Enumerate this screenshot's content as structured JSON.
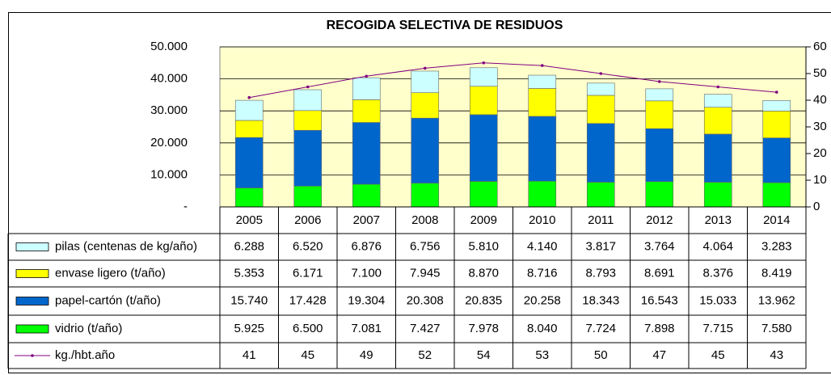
{
  "chart_data": {
    "type": "bar",
    "stacked": true,
    "title": "RECOGIDA SELECTIVA DE RESIDUOS",
    "categories": [
      "2005",
      "2006",
      "2007",
      "2008",
      "2009",
      "2010",
      "2011",
      "2012",
      "2013",
      "2014"
    ],
    "series": [
      {
        "name": "pilas (centenas de kg/año)",
        "color": "#ccffff",
        "values": [
          6288,
          6520,
          6876,
          6756,
          5810,
          4140,
          3817,
          3764,
          4064,
          3283
        ],
        "value_labels": [
          "6.288",
          "6.520",
          "6.876",
          "6.756",
          "5.810",
          "4.140",
          "3.817",
          "3.764",
          "4.064",
          "3.283"
        ]
      },
      {
        "name": "envase ligero (t/año)",
        "color": "#ffff00",
        "values": [
          5353,
          6171,
          7100,
          7945,
          8870,
          8716,
          8793,
          8691,
          8376,
          8419
        ],
        "value_labels": [
          "5.353",
          "6.171",
          "7.100",
          "7.945",
          "8.870",
          "8.716",
          "8.793",
          "8.691",
          "8.376",
          "8.419"
        ]
      },
      {
        "name": "papel-cartón (t/año)",
        "color": "#0066cc",
        "values": [
          15740,
          17428,
          19304,
          20308,
          20835,
          20258,
          18343,
          16543,
          15033,
          13962
        ],
        "value_labels": [
          "15.740",
          "17.428",
          "19.304",
          "20.308",
          "20.835",
          "20.258",
          "18.343",
          "16.543",
          "15.033",
          "13.962"
        ]
      },
      {
        "name": "vidrio (t/año)",
        "color": "#00ff00",
        "values": [
          5925,
          6500,
          7081,
          7427,
          7978,
          8040,
          7724,
          7898,
          7715,
          7580
        ],
        "value_labels": [
          "5.925",
          "6.500",
          "7.081",
          "7.427",
          "7.978",
          "8.040",
          "7.724",
          "7.898",
          "7.715",
          "7.580"
        ]
      },
      {
        "name": "kg./hbt.año",
        "type": "line",
        "axis": "y2",
        "color": "#800080",
        "values": [
          41,
          45,
          49,
          52,
          54,
          53,
          50,
          47,
          45,
          43
        ]
      }
    ],
    "ylim": [
      0,
      50000
    ],
    "yticks": [
      {
        "value": 0,
        "label": "-"
      },
      {
        "value": 10000,
        "label": "10.000"
      },
      {
        "value": 20000,
        "label": "20.000"
      },
      {
        "value": 30000,
        "label": "30.000"
      },
      {
        "value": 40000,
        "label": "40.000"
      },
      {
        "value": 50000,
        "label": "50.000"
      }
    ],
    "y2lim": [
      0,
      60
    ],
    "y2ticks": [
      0,
      10,
      20,
      30,
      40,
      50,
      60
    ],
    "grid": true
  }
}
